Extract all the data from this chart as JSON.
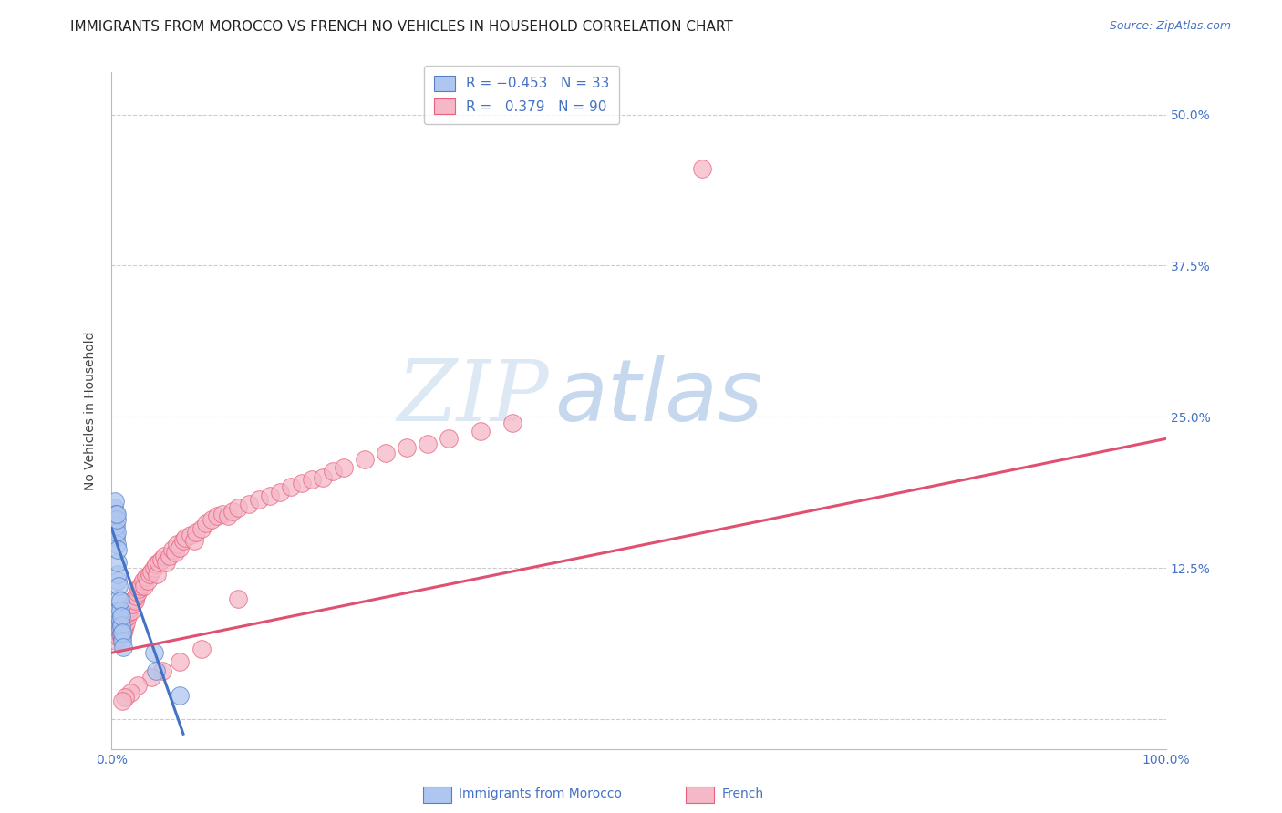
{
  "title": "IMMIGRANTS FROM MOROCCO VS FRENCH NO VEHICLES IN HOUSEHOLD CORRELATION CHART",
  "source": "Source: ZipAtlas.com",
  "ylabel": "No Vehicles in Household",
  "ytick_values": [
    0.0,
    0.125,
    0.25,
    0.375,
    0.5
  ],
  "xlim": [
    0,
    1.0
  ],
  "ylim": [
    -0.025,
    0.535
  ],
  "morocco_x": [
    0.002,
    0.002,
    0.003,
    0.003,
    0.003,
    0.004,
    0.004,
    0.004,
    0.005,
    0.005,
    0.005,
    0.005,
    0.006,
    0.006,
    0.006,
    0.006,
    0.007,
    0.007,
    0.007,
    0.007,
    0.008,
    0.008,
    0.008,
    0.008,
    0.009,
    0.009,
    0.009,
    0.01,
    0.01,
    0.011,
    0.04,
    0.042,
    0.065
  ],
  "morocco_y": [
    0.165,
    0.175,
    0.155,
    0.17,
    0.18,
    0.15,
    0.16,
    0.17,
    0.145,
    0.155,
    0.165,
    0.17,
    0.115,
    0.12,
    0.13,
    0.14,
    0.085,
    0.09,
    0.1,
    0.11,
    0.075,
    0.082,
    0.09,
    0.098,
    0.07,
    0.078,
    0.085,
    0.065,
    0.072,
    0.06,
    0.055,
    0.04,
    0.02
  ],
  "french_x": [
    0.004,
    0.005,
    0.006,
    0.007,
    0.007,
    0.008,
    0.008,
    0.009,
    0.009,
    0.01,
    0.01,
    0.011,
    0.011,
    0.012,
    0.012,
    0.013,
    0.013,
    0.014,
    0.015,
    0.015,
    0.016,
    0.017,
    0.018,
    0.019,
    0.02,
    0.021,
    0.022,
    0.023,
    0.025,
    0.026,
    0.027,
    0.028,
    0.03,
    0.031,
    0.033,
    0.034,
    0.036,
    0.038,
    0.04,
    0.042,
    0.043,
    0.045,
    0.047,
    0.05,
    0.052,
    0.055,
    0.058,
    0.06,
    0.062,
    0.065,
    0.068,
    0.07,
    0.075,
    0.078,
    0.08,
    0.085,
    0.09,
    0.095,
    0.1,
    0.105,
    0.11,
    0.115,
    0.12,
    0.13,
    0.14,
    0.15,
    0.16,
    0.17,
    0.18,
    0.19,
    0.2,
    0.21,
    0.22,
    0.24,
    0.26,
    0.28,
    0.3,
    0.32,
    0.35,
    0.38,
    0.12,
    0.085,
    0.065,
    0.048,
    0.038,
    0.025,
    0.018,
    0.013,
    0.01,
    0.56
  ],
  "french_y": [
    0.065,
    0.07,
    0.072,
    0.068,
    0.075,
    0.07,
    0.078,
    0.073,
    0.08,
    0.068,
    0.075,
    0.072,
    0.08,
    0.075,
    0.082,
    0.078,
    0.085,
    0.08,
    0.085,
    0.09,
    0.088,
    0.092,
    0.095,
    0.09,
    0.095,
    0.1,
    0.098,
    0.102,
    0.105,
    0.108,
    0.11,
    0.112,
    0.115,
    0.11,
    0.118,
    0.115,
    0.12,
    0.122,
    0.125,
    0.128,
    0.12,
    0.13,
    0.132,
    0.135,
    0.13,
    0.135,
    0.14,
    0.138,
    0.145,
    0.142,
    0.148,
    0.15,
    0.152,
    0.148,
    0.155,
    0.158,
    0.162,
    0.165,
    0.168,
    0.17,
    0.168,
    0.172,
    0.175,
    0.178,
    0.182,
    0.185,
    0.188,
    0.192,
    0.195,
    0.198,
    0.2,
    0.205,
    0.208,
    0.215,
    0.22,
    0.225,
    0.228,
    0.232,
    0.238,
    0.245,
    0.1,
    0.058,
    0.048,
    0.04,
    0.035,
    0.028,
    0.022,
    0.018,
    0.015,
    0.455
  ],
  "morocco_trendline_x": [
    0.0,
    0.068
  ],
  "morocco_trendline_y": [
    0.158,
    -0.012
  ],
  "french_trendline_x": [
    0.0,
    1.0
  ],
  "french_trendline_y": [
    0.055,
    0.232
  ],
  "title_fontsize": 11,
  "source_fontsize": 9,
  "label_fontsize": 10,
  "tick_fontsize": 10,
  "legend_fontsize": 11,
  "watermark_zip": "ZIP",
  "watermark_atlas": "atlas",
  "watermark_color_zip": "#dde8f5",
  "watermark_color_atlas": "#c5d8ed",
  "watermark_fontsize": 68,
  "morocco_color": "#aec6f0",
  "morocco_edge": "#5580c8",
  "french_color": "#f4b8c8",
  "french_edge": "#e8607a",
  "trend_morocco_color": "#4472c4",
  "trend_french_color": "#e05070",
  "grid_color": "#cccccc",
  "bg_color": "#ffffff",
  "tick_color": "#4472c4",
  "title_color": "#222222"
}
